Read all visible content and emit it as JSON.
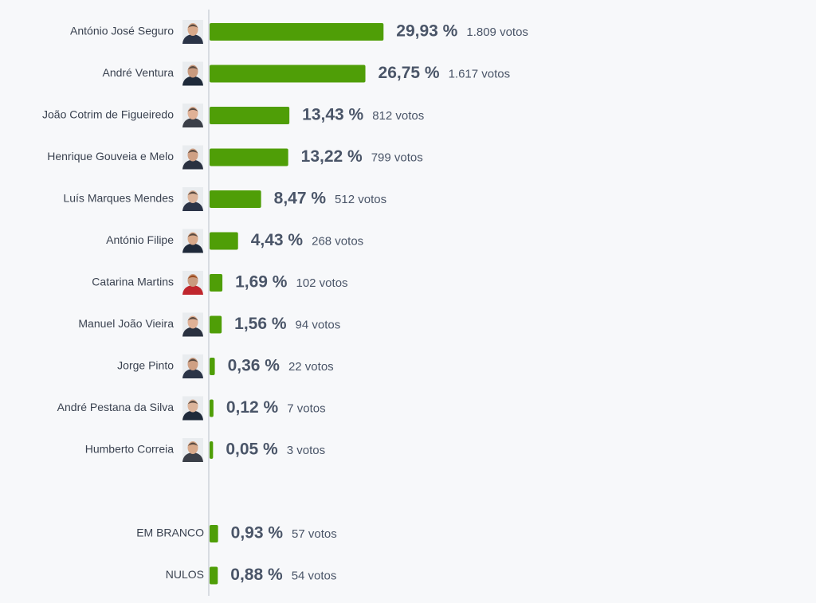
{
  "chart_data": [
    {
      "type": "bar",
      "orientation": "horizontal",
      "color": "#4f9e07",
      "categories": [
        "António José Seguro",
        "André Ventura",
        "João Cotrim de Figueiredo",
        "Henrique Gouveia e Melo",
        "Luís Marques Mendes",
        "António Filipe",
        "Catarina Martins",
        "Manuel João Vieira",
        "Jorge Pinto",
        "André Pestana da Silva",
        "Humberto Correia"
      ],
      "values": [
        29.93,
        26.75,
        13.43,
        13.22,
        8.47,
        4.43,
        1.69,
        1.56,
        0.36,
        0.12,
        0.05
      ],
      "value_labels": [
        "29,93 %",
        "26,75 %",
        "13,43 %",
        "13,22 %",
        "8,47 %",
        "4,43 %",
        "1,69 %",
        "1,56 %",
        "0,36 %",
        "0,12 %",
        "0,05 %"
      ],
      "vote_labels": [
        "1.809 votos",
        "1.617 votos",
        "812 votos",
        "799 votos",
        "512 votos",
        "268 votos",
        "102 votos",
        "94 votos",
        "22 votos",
        "7 votos",
        "3 votos"
      ]
    },
    {
      "type": "bar",
      "orientation": "horizontal",
      "color": "#4f9e07",
      "categories": [
        "EM BRANCO",
        "NULOS"
      ],
      "values": [
        0.93,
        0.88
      ],
      "value_labels": [
        "0,93 %",
        "0,88 %"
      ],
      "vote_labels": [
        "57 votos",
        "54 votos"
      ]
    }
  ]
}
